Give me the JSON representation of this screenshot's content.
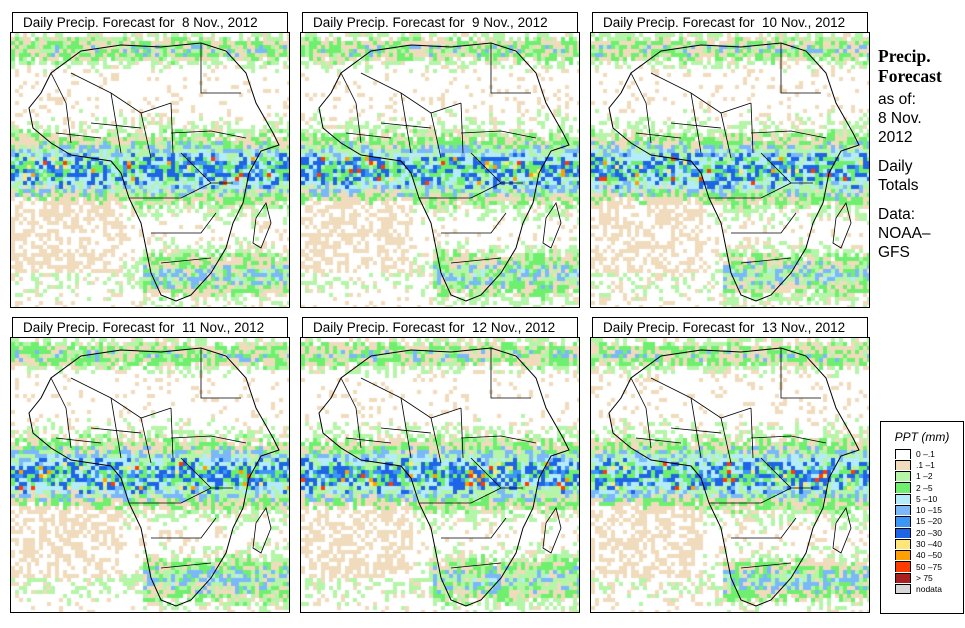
{
  "panels": [
    {
      "title": "Daily Precip. Forecast for  8 Nov., 2012",
      "date": "8 Nov., 2012",
      "seed": 11
    },
    {
      "title": "Daily Precip. Forecast for  9 Nov., 2012",
      "date": "9 Nov., 2012",
      "seed": 23
    },
    {
      "title": "Daily Precip. Forecast for  10 Nov., 2012",
      "date": "10 Nov., 2012",
      "seed": 37
    },
    {
      "title": "Daily Precip. Forecast for  11 Nov., 2012",
      "date": "11 Nov., 2012",
      "seed": 41
    },
    {
      "title": "Daily Precip. Forecast for  12 Nov., 2012",
      "date": "12 Nov., 2012",
      "seed": 53
    },
    {
      "title": "Daily Precip. Forecast for  13 Nov., 2012",
      "date": "13 Nov., 2012",
      "seed": 67
    }
  ],
  "sidebar": {
    "heading_line1": "Precip.",
    "heading_line2": "Forecast",
    "as_of_label": "as of:",
    "as_of_date_line1": "8 Nov.",
    "as_of_date_line2": "2012",
    "totals_line1": "Daily",
    "totals_line2": "Totals",
    "data_line1": "Data:",
    "data_line2": "NOAA–",
    "data_line3": "GFS"
  },
  "legend": {
    "title": "PPT (mm)",
    "items": [
      {
        "label": "0 –.1",
        "color": "#ffffff"
      },
      {
        "label": ".1 –1",
        "color": "#f0dcbc"
      },
      {
        "label": "1 –2",
        "color": "#b4f5a8"
      },
      {
        "label": "2 –5",
        "color": "#6ef06e"
      },
      {
        "label": "5 –10",
        "color": "#b4ecfa"
      },
      {
        "label": "10 –15",
        "color": "#7ab8fa"
      },
      {
        "label": "15 –20",
        "color": "#3c96f5"
      },
      {
        "label": "20 –30",
        "color": "#1e64e6"
      },
      {
        "label": "30 –40",
        "color": "#ffe678"
      },
      {
        "label": "40 –50",
        "color": "#ffa000"
      },
      {
        "label": "50 –75",
        "color": "#ff3c00"
      },
      {
        "label": "> 75",
        "color": "#aa2020"
      },
      {
        "label": "nodata",
        "color": "#d7d7d7"
      }
    ]
  }
}
